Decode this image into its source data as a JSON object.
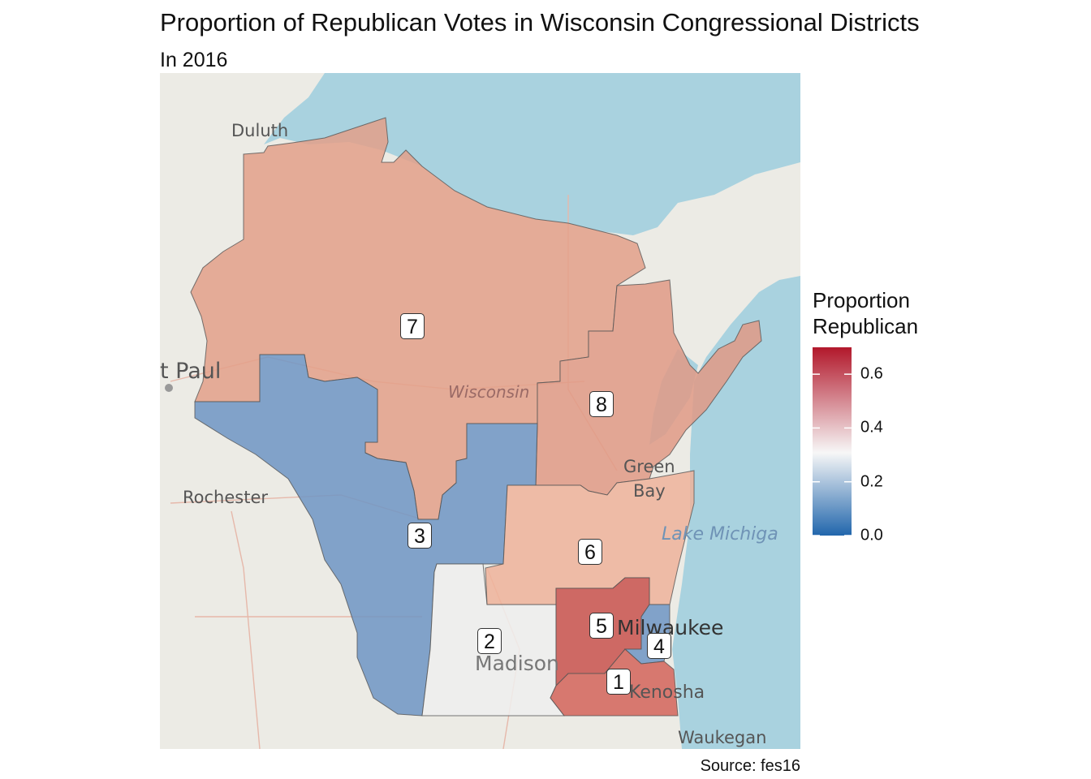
{
  "title": "Proportion of Republican Votes in Wisconsin Congressional Districts",
  "subtitle": "In 2016",
  "caption": "Source: fes16",
  "legend": {
    "title_line1": "Proportion",
    "title_line2": "Republican",
    "ticks": [
      "0.0",
      "0.2",
      "0.4",
      "0.6"
    ],
    "tick_values": [
      0.0,
      0.2,
      0.4,
      0.6
    ],
    "range": [
      0.0,
      0.7
    ],
    "colors": [
      "#2166ac",
      "#f7f7f7",
      "#b2182b"
    ]
  },
  "basemap_labels": {
    "duluth": "Duluth",
    "st_paul": "t Paul",
    "rochester": "Rochester",
    "wisconsin": "Wisconsin",
    "green": "Green",
    "bay": "Bay",
    "lake_michigan": "Lake Michiga",
    "milwaukee": "Milwaukee",
    "madison": "Madison",
    "kenosha": "Kenosha",
    "waukegan": "Waukegan"
  },
  "districts": [
    {
      "id": "1",
      "label": "1",
      "proportion": 0.65,
      "color": "#d4645a"
    },
    {
      "id": "2",
      "label": "2",
      "proportion": 0.31,
      "color": "#eeeeee"
    },
    {
      "id": "3",
      "label": "3",
      "proportion": 0.0,
      "color": "#6f95c4"
    },
    {
      "id": "4",
      "label": "4",
      "proportion": 0.0,
      "color": "#6f95c4"
    },
    {
      "id": "5",
      "label": "5",
      "proportion": 0.7,
      "color": "#c9524e"
    },
    {
      "id": "6",
      "label": "6",
      "proportion": 0.57,
      "color": "#efb39b"
    },
    {
      "id": "7",
      "label": "7",
      "proportion": 0.62,
      "color": "#e3a08a"
    },
    {
      "id": "8",
      "label": "8",
      "proportion": 0.63,
      "color": "#e09a86"
    }
  ]
}
